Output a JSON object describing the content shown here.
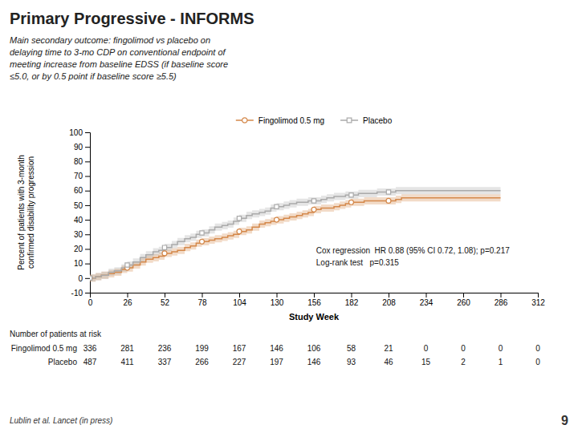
{
  "chart_data": {
    "type": "line",
    "title": "Primary Progressive - INFORMS",
    "subtitle": "Main secondary outcome: fingolimod vs placebo on\ndelaying time to 3-mo CDP on conventional endpoint of\nmeeting increase from baseline EDSS (if baseline score\n≤5.0, or by 0.5 point if baseline score ≥5.5)",
    "xlabel": "Study Week",
    "ylabel": "Percent of patients with 3-month\nconfirmed disability progression",
    "xlim": [
      0,
      312
    ],
    "ylim": [
      -10,
      100
    ],
    "xticks": [
      0,
      26,
      52,
      78,
      104,
      130,
      156,
      182,
      208,
      234,
      260,
      286,
      312
    ],
    "yticks": [
      -10,
      0,
      10,
      20,
      30,
      40,
      50,
      60,
      70,
      80,
      90,
      100
    ],
    "grid": false,
    "legend": "top",
    "marker_x": [
      0,
      26,
      52,
      78,
      104,
      130,
      156,
      182,
      208
    ],
    "series": [
      {
        "name": "Fingolimod 0.5 mg",
        "color": "#D4884A",
        "marker": "circle",
        "line_style": "step",
        "x": [
          0,
          4,
          8,
          13,
          17,
          22,
          26,
          30,
          35,
          39,
          44,
          48,
          52,
          57,
          61,
          66,
          70,
          74,
          78,
          83,
          87,
          92,
          96,
          100,
          104,
          109,
          113,
          118,
          122,
          126,
          130,
          135,
          139,
          144,
          148,
          152,
          156,
          161,
          165,
          170,
          174,
          178,
          182,
          187,
          191,
          196,
          200,
          204,
          208,
          213,
          217,
          222,
          226,
          230,
          234,
          239,
          243,
          248,
          260,
          270,
          286
        ],
        "values": [
          0,
          1,
          2,
          3,
          4,
          6,
          7,
          9,
          11,
          13,
          14,
          15,
          17,
          18,
          19,
          21,
          22,
          24,
          25,
          26,
          27,
          28,
          29,
          30,
          32,
          33,
          35,
          37,
          38,
          39,
          40,
          41,
          42,
          43,
          44,
          45,
          47,
          48,
          48,
          49,
          50,
          51,
          52,
          52,
          53,
          53,
          53,
          53,
          53,
          54,
          55,
          55,
          55,
          55,
          55,
          55,
          55,
          55,
          55,
          55,
          55
        ],
        "error": [
          2.5,
          2.5,
          2.5,
          2.5,
          2.5,
          2.5,
          2.5,
          2.5,
          2.5,
          2.5,
          2.5,
          2.5,
          2.5,
          2.5,
          2.5,
          2.5,
          2.5,
          2.5,
          2.5,
          2.5,
          2.5,
          2.5,
          2.5,
          2.5,
          2.5,
          2.5,
          2.5,
          2.5,
          2.5,
          2.5,
          2.5,
          2.5,
          2.5,
          2.5,
          2.5,
          2.5,
          2.5,
          2.5,
          2.5,
          2.5,
          2.5,
          2.5,
          2.5,
          2.5,
          2.5,
          2.5,
          2.5,
          2.5,
          2.5,
          2.5,
          2.5,
          2.5,
          2.5,
          2.5,
          2.5,
          2.5,
          2.5,
          2.5,
          2.5,
          2.5,
          2.5
        ]
      },
      {
        "name": "Placebo",
        "color": "#AAAAAA",
        "marker": "square",
        "line_style": "step",
        "x": [
          0,
          4,
          8,
          13,
          17,
          22,
          26,
          30,
          35,
          39,
          44,
          48,
          52,
          57,
          61,
          66,
          70,
          74,
          78,
          83,
          87,
          92,
          96,
          100,
          104,
          109,
          113,
          118,
          122,
          126,
          130,
          135,
          139,
          144,
          148,
          152,
          156,
          161,
          165,
          170,
          174,
          178,
          182,
          187,
          191,
          196,
          200,
          204,
          208,
          213,
          217,
          222,
          226,
          230,
          234,
          239,
          243,
          260,
          270,
          286
        ],
        "values": [
          0,
          1,
          2,
          4,
          5,
          7,
          9,
          11,
          14,
          16,
          18,
          19,
          21,
          23,
          25,
          27,
          28,
          30,
          31,
          33,
          35,
          36,
          37,
          39,
          41,
          43,
          44,
          45,
          46,
          48,
          49,
          50,
          51,
          52,
          52,
          53,
          53,
          54,
          55,
          56,
          56,
          57,
          57,
          58,
          58,
          58,
          59,
          59,
          59,
          60,
          60,
          60,
          60,
          60,
          60,
          60,
          60,
          60,
          60,
          60
        ],
        "error": [
          2.5,
          2.5,
          2.5,
          2.5,
          2.5,
          2.5,
          2.5,
          2.5,
          2.5,
          2.5,
          2.5,
          2.5,
          2.5,
          2.5,
          2.5,
          2.5,
          2.5,
          2.5,
          2.5,
          2.5,
          2.5,
          2.5,
          2.5,
          2.5,
          2.5,
          2.5,
          2.5,
          2.5,
          2.5,
          2.5,
          2.5,
          2.5,
          2.5,
          2.5,
          2.5,
          2.5,
          2.5,
          2.5,
          2.5,
          2.5,
          2.5,
          2.5,
          2.5,
          2.5,
          2.5,
          2.5,
          2.5,
          2.5,
          2.5,
          2.5,
          2.5,
          2.5,
          2.5,
          2.5,
          2.5,
          2.5,
          2.5,
          2.5,
          2.5,
          2.5
        ]
      }
    ],
    "annotations": [
      "Cox regression  HR 0.88 (95% CI 0.72, 1.08); p=0.217",
      "Log-rank test   p=0.315"
    ],
    "risk_table": {
      "label": "Number of patients at risk",
      "weeks": [
        0,
        26,
        52,
        78,
        104,
        130,
        156,
        182,
        208,
        234,
        260,
        286,
        312
      ],
      "rows": [
        {
          "name": "Fingolimod 0.5 mg",
          "values": [
            336,
            281,
            236,
            199,
            167,
            146,
            106,
            58,
            21,
            0,
            0,
            0,
            0
          ]
        },
        {
          "name": "Placebo",
          "values": [
            487,
            411,
            337,
            266,
            227,
            197,
            146,
            93,
            46,
            15,
            2,
            1,
            0
          ]
        }
      ]
    },
    "footer": "Lublin et al. Lancet (in press)",
    "page_number": "9"
  }
}
